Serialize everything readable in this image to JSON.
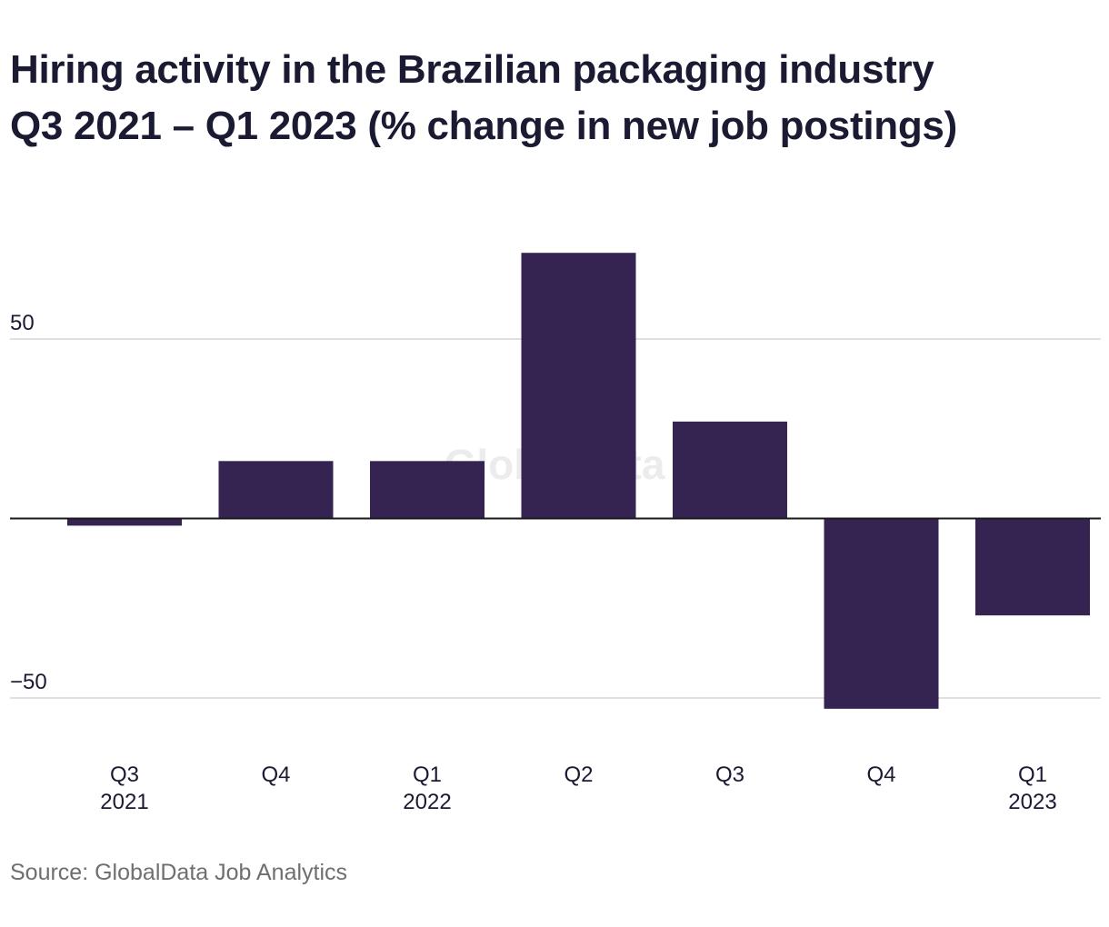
{
  "title_lines": [
    "Hiring activity in the Brazilian packaging industry",
    "Q3 2021 – Q1 2023 (% change in new job postings)"
  ],
  "source": "Source: GlobalData Job Analytics",
  "watermark": "GlobalData",
  "colors": {
    "bar": "#352451",
    "grid": "#d6d6d6",
    "zero_line": "#1a1a1a",
    "text": "#1b1a33",
    "muted": "#6e6e73"
  },
  "chart_data": {
    "type": "bar",
    "categories": [
      {
        "quarter": "Q3",
        "year": "2021"
      },
      {
        "quarter": "Q4",
        "year": ""
      },
      {
        "quarter": "Q1",
        "year": "2022"
      },
      {
        "quarter": "Q2",
        "year": ""
      },
      {
        "quarter": "Q3",
        "year": ""
      },
      {
        "quarter": "Q4",
        "year": ""
      },
      {
        "quarter": "Q1",
        "year": "2023"
      }
    ],
    "values": [
      -2,
      16,
      16,
      74,
      27,
      -53,
      -27
    ],
    "yticks": [
      50,
      -50
    ],
    "ytick_labels": [
      "50",
      "−50"
    ],
    "ylim": [
      -60,
      78
    ],
    "grid": true,
    "legend": "none"
  }
}
